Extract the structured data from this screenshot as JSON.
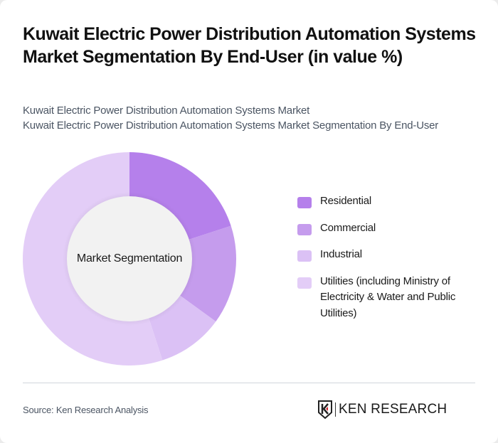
{
  "header": {
    "title": "Kuwait Electric Power Distribution Automation Systems Market Segmentation By End-User (in value %)",
    "subtitle_line1": "Kuwait Electric Power Distribution Automation Systems Market",
    "subtitle_line2": "Kuwait Electric Power Distribution Automation Systems Market Segmentation By End-User"
  },
  "chart": {
    "center_label": "Market Segmentation"
  },
  "legend": {
    "items": [
      {
        "label": "Residential",
        "color": "#b580eb"
      },
      {
        "label": "Commercial",
        "color": "#c59ced"
      },
      {
        "label": "Industrial",
        "color": "#dbc1f5"
      },
      {
        "label": "Utilities (including Ministry of Electricity & Water and Public Utilities)",
        "color": "#e3cdf7"
      }
    ]
  },
  "footer": {
    "source": "Source: Ken Research Analysis",
    "brand": "KEN RESEARCH"
  },
  "chart_data": {
    "type": "pie",
    "title": "Kuwait Electric Power Distribution Automation Systems Market Segmentation By End-User (in value %)",
    "subtitle": "Kuwait Electric Power Distribution Automation Systems Market Segmentation By End-User",
    "center_label": "Market Segmentation",
    "donut": true,
    "categories": [
      "Residential",
      "Commercial",
      "Industrial",
      "Utilities (including Ministry of Electricity & Water and Public Utilities)"
    ],
    "values": [
      20,
      15,
      10,
      55
    ],
    "colors": [
      "#b580eb",
      "#c59ced",
      "#dbc1f5",
      "#e3cdf7"
    ],
    "legend_position": "right",
    "source": "Source: Ken Research Analysis"
  }
}
